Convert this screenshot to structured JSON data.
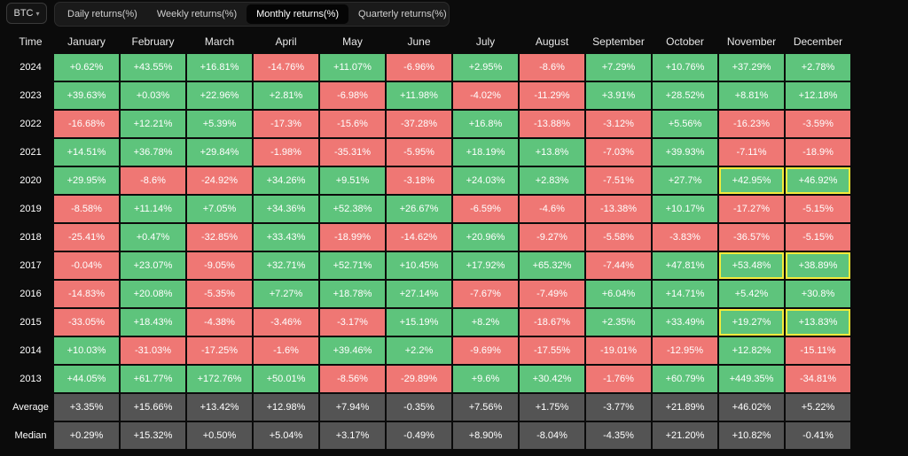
{
  "asset_select": {
    "value": "BTC"
  },
  "tabs": [
    {
      "label": "Daily returns(%)",
      "active": false
    },
    {
      "label": "Weekly returns(%)",
      "active": false
    },
    {
      "label": "Monthly returns(%)",
      "active": true
    },
    {
      "label": "Quarterly returns(%)",
      "active": false
    }
  ],
  "colors": {
    "positive": "#5ec47c",
    "negative": "#ef7774",
    "stat": "#545454",
    "highlight": "#f3ea3b"
  },
  "table": {
    "corner_label": "Time",
    "months": [
      "January",
      "February",
      "March",
      "April",
      "May",
      "June",
      "July",
      "August",
      "September",
      "October",
      "November",
      "December"
    ],
    "rows": [
      {
        "year": "2024",
        "values": [
          "+0.62%",
          "+43.55%",
          "+16.81%",
          "-14.76%",
          "+11.07%",
          "-6.96%",
          "+2.95%",
          "-8.6%",
          "+7.29%",
          "+10.76%",
          "+37.29%",
          "+2.78%"
        ]
      },
      {
        "year": "2023",
        "values": [
          "+39.63%",
          "+0.03%",
          "+22.96%",
          "+2.81%",
          "-6.98%",
          "+11.98%",
          "-4.02%",
          "-11.29%",
          "+3.91%",
          "+28.52%",
          "+8.81%",
          "+12.18%"
        ]
      },
      {
        "year": "2022",
        "values": [
          "-16.68%",
          "+12.21%",
          "+5.39%",
          "-17.3%",
          "-15.6%",
          "-37.28%",
          "+16.8%",
          "-13.88%",
          "-3.12%",
          "+5.56%",
          "-16.23%",
          "-3.59%"
        ]
      },
      {
        "year": "2021",
        "values": [
          "+14.51%",
          "+36.78%",
          "+29.84%",
          "-1.98%",
          "-35.31%",
          "-5.95%",
          "+18.19%",
          "+13.8%",
          "-7.03%",
          "+39.93%",
          "-7.11%",
          "-18.9%"
        ]
      },
      {
        "year": "2020",
        "values": [
          "+29.95%",
          "-8.6%",
          "-24.92%",
          "+34.26%",
          "+9.51%",
          "-3.18%",
          "+24.03%",
          "+2.83%",
          "-7.51%",
          "+27.7%",
          "+42.95%",
          "+46.92%"
        ]
      },
      {
        "year": "2019",
        "values": [
          "-8.58%",
          "+11.14%",
          "+7.05%",
          "+34.36%",
          "+52.38%",
          "+26.67%",
          "-6.59%",
          "-4.6%",
          "-13.38%",
          "+10.17%",
          "-17.27%",
          "-5.15%"
        ]
      },
      {
        "year": "2018",
        "values": [
          "-25.41%",
          "+0.47%",
          "-32.85%",
          "+33.43%",
          "-18.99%",
          "-14.62%",
          "+20.96%",
          "-9.27%",
          "-5.58%",
          "-3.83%",
          "-36.57%",
          "-5.15%"
        ]
      },
      {
        "year": "2017",
        "values": [
          "-0.04%",
          "+23.07%",
          "-9.05%",
          "+32.71%",
          "+52.71%",
          "+10.45%",
          "+17.92%",
          "+65.32%",
          "-7.44%",
          "+47.81%",
          "+53.48%",
          "+38.89%"
        ]
      },
      {
        "year": "2016",
        "values": [
          "-14.83%",
          "+20.08%",
          "-5.35%",
          "+7.27%",
          "+18.78%",
          "+27.14%",
          "-7.67%",
          "-7.49%",
          "+6.04%",
          "+14.71%",
          "+5.42%",
          "+30.8%"
        ]
      },
      {
        "year": "2015",
        "values": [
          "-33.05%",
          "+18.43%",
          "-4.38%",
          "-3.46%",
          "-3.17%",
          "+15.19%",
          "+8.2%",
          "-18.67%",
          "+2.35%",
          "+33.49%",
          "+19.27%",
          "+13.83%"
        ]
      },
      {
        "year": "2014",
        "values": [
          "+10.03%",
          "-31.03%",
          "-17.25%",
          "-1.6%",
          "+39.46%",
          "+2.2%",
          "-9.69%",
          "-17.55%",
          "-19.01%",
          "-12.95%",
          "+12.82%",
          "-15.11%"
        ]
      },
      {
        "year": "2013",
        "values": [
          "+44.05%",
          "+61.77%",
          "+172.76%",
          "+50.01%",
          "-8.56%",
          "-29.89%",
          "+9.6%",
          "+30.42%",
          "-1.76%",
          "+60.79%",
          "+449.35%",
          "-34.81%"
        ]
      }
    ],
    "summary_rows": [
      {
        "label": "Average",
        "values": [
          "+3.35%",
          "+15.66%",
          "+13.42%",
          "+12.98%",
          "+7.94%",
          "-0.35%",
          "+7.56%",
          "+1.75%",
          "-3.77%",
          "+21.89%",
          "+46.02%",
          "+5.22%"
        ]
      },
      {
        "label": "Median",
        "values": [
          "+0.29%",
          "+15.32%",
          "+0.50%",
          "+5.04%",
          "+3.17%",
          "-0.49%",
          "+8.90%",
          "-8.04%",
          "-4.35%",
          "+21.20%",
          "+10.82%",
          "-0.41%"
        ]
      }
    ],
    "highlighted_cells": [
      {
        "year": "2020",
        "months": [
          "November",
          "December"
        ]
      },
      {
        "year": "2017",
        "months": [
          "November",
          "December"
        ]
      },
      {
        "year": "2015",
        "months": [
          "November",
          "December"
        ]
      }
    ]
  }
}
